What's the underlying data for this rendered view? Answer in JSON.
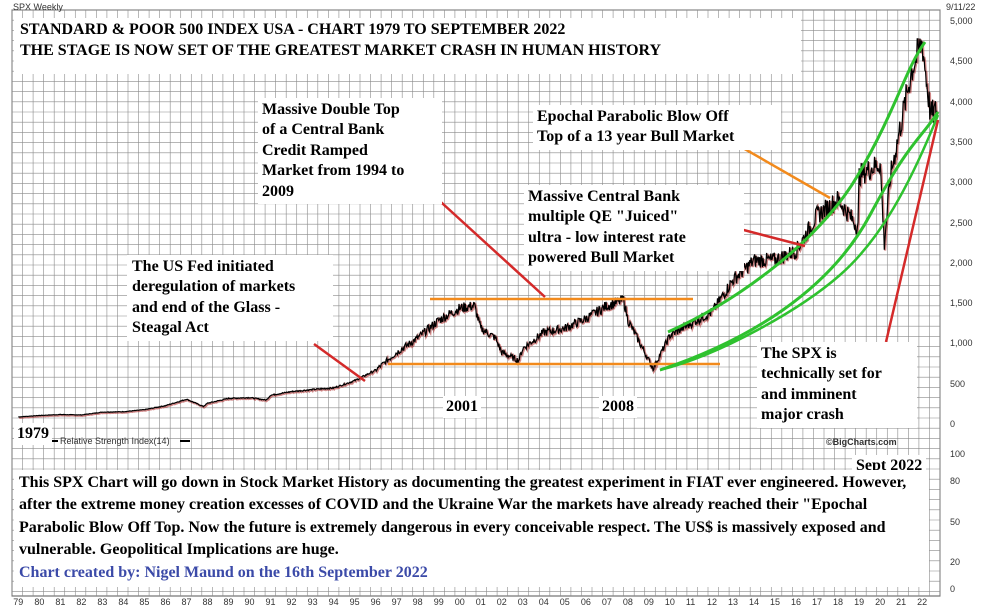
{
  "header": {
    "symbol_label": "SPX Weekly",
    "date_label": "9/11/22",
    "watermark": "©BigCharts.com",
    "rsi_label": "Relative Strength Index(14)"
  },
  "title_box": {
    "line1": "STANDARD & POOR 500 INDEX USA - CHART 1979 TO SEPTEMBER 2022",
    "line2": "THE STAGE IS NOW SET OF THE GREATEST MARKET CRASH IN HUMAN HISTORY"
  },
  "annotations": {
    "double_top": [
      "Massive Double Top",
      "of a Central Bank",
      "Credit Ramped",
      "Market from 1994 to",
      "2009"
    ],
    "fed": [
      "The US Fed initiated",
      "deregulation of markets",
      "and end of the Glass -",
      "Steagal Act"
    ],
    "parabolic": [
      "Epochal Parabolic Blow Off",
      "Top of a 13 year Bull Market"
    ],
    "qe": [
      "Massive Central Bank",
      "multiple QE \"Juiced\"",
      "ultra - low interest rate",
      "powered Bull Market"
    ],
    "crash": [
      "The SPX is",
      "technically set for",
      "and imminent",
      "major crash"
    ],
    "year_2001": "2001",
    "year_2008": "2008",
    "year_1979": "1979",
    "sept_2022": "Sept 2022"
  },
  "bottom_text": {
    "paragraph": "This SPX Chart will go down in Stock Market History as documenting the greatest experiment in FIAT ever engineered. However, after the extreme money creation excesses of COVID and the Ukraine War the markets have already reached their \"Epochal Parabolic Blow Off Top. Now the future is extremely dangerous in every conceivable respect. The US$ is massively exposed and vulnerable. Geopolitical Implications are huge.",
    "credit": "Chart created by: Nigel Maund on the 16th September 2022"
  },
  "colors": {
    "price": "#000000",
    "price_shadow": "#aa2222",
    "orange": "#f28a1c",
    "green": "#2fc22f",
    "red_arrow": "#d42a2a",
    "grid": "#8a8a8a",
    "credit_text": "#3b4aa8"
  },
  "chart_data": {
    "type": "line",
    "x_ticks": [
      "79",
      "80",
      "81",
      "82",
      "83",
      "84",
      "85",
      "86",
      "87",
      "88",
      "89",
      "90",
      "91",
      "92",
      "93",
      "94",
      "95",
      "96",
      "97",
      "98",
      "99",
      "00",
      "01",
      "02",
      "03",
      "04",
      "05",
      "06",
      "07",
      "08",
      "09",
      "10",
      "11",
      "12",
      "13",
      "14",
      "15",
      "16",
      "17",
      "18",
      "19",
      "20",
      "21",
      "22"
    ],
    "price_y_ticks": [
      "5,000",
      "4,500",
      "4,000",
      "3,500",
      "3,000",
      "2,500",
      "2,000",
      "1,500",
      "1,000",
      "500",
      "0"
    ],
    "ylim": [
      0,
      5000
    ],
    "rsi_y_ticks": [
      "100",
      "80",
      "50",
      "20",
      "0"
    ],
    "rsi_ylim": [
      0,
      100
    ],
    "series": [
      {
        "x": [
          1979,
          1980,
          1981,
          1982,
          1983,
          1984,
          1985,
          1986,
          1987,
          1987.8,
          1988,
          1989,
          1990,
          1990.8,
          1991,
          1992,
          1993,
          1994,
          1995,
          1996,
          1997,
          1998,
          1999,
          2000,
          2000.7,
          2001,
          2001.7,
          2002,
          2002.8,
          2003,
          2004,
          2005,
          2006,
          2007,
          2007.8,
          2008,
          2008.8,
          2009.2,
          2010,
          2011,
          2012,
          2013,
          2014,
          2015,
          2016,
          2017,
          2018,
          2018.95,
          2019,
          2020,
          2020.2,
          2020.5,
          2021,
          2021.5,
          2022,
          2022.4,
          2022.7
        ],
        "values": [
          100,
          118,
          130,
          125,
          160,
          165,
          190,
          240,
          320,
          230,
          270,
          330,
          340,
          310,
          370,
          415,
          440,
          460,
          550,
          680,
          900,
          1080,
          1300,
          1450,
          1480,
          1200,
          1080,
          900,
          800,
          950,
          1150,
          1200,
          1320,
          1480,
          1550,
          1300,
          900,
          700,
          1110,
          1260,
          1400,
          1800,
          2040,
          2050,
          2160,
          2600,
          2800,
          2450,
          3100,
          3250,
          2250,
          3100,
          3750,
          4400,
          4750,
          3850,
          3900
        ]
      }
    ]
  }
}
